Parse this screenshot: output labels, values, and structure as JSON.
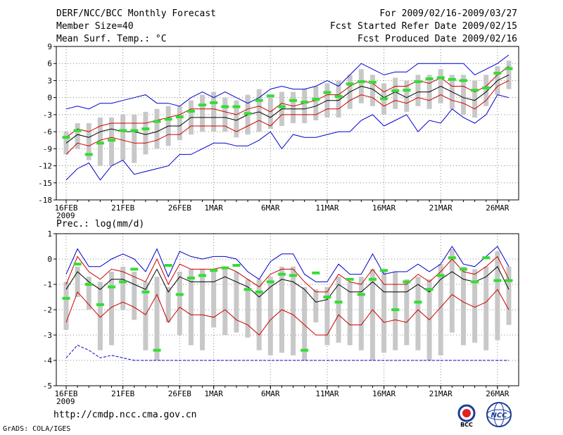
{
  "header": {
    "title": "DERF/NCC/BCC Monthly Forecast",
    "member_size": "Member Size=40",
    "variable": "Mean Surf. Temp.: °C",
    "for_period": "For 2009/02/16-2009/03/27",
    "fcst_started": "Fcst Started Refer Date 2009/02/15",
    "fcst_produced": "Fcst Produced Date 2009/02/16"
  },
  "footer": {
    "url": "http://cmdp.ncc.cma.gov.cn",
    "grads": "GrADS: COLA/IGES",
    "logo_bcc": "BCC",
    "logo_ncc": "NCC"
  },
  "colors": {
    "envelope": "#0000cc",
    "spread": "#cc0000",
    "mean": "#000000",
    "bar": "#c8c8c8",
    "observed": "#33dd33"
  },
  "chart_data": [
    {
      "type": "line",
      "title": "Mean Surf. Temp.: °C",
      "ylim": [
        -18,
        9
      ],
      "yticks": [
        -18,
        -15,
        -12,
        -9,
        -6,
        -3,
        0,
        3,
        6,
        9
      ],
      "xtick_labels": [
        "16FEB",
        "21FEB",
        "26FEB",
        "1MAR",
        "6MAR",
        "11MAR",
        "16MAR",
        "21MAR",
        "26MAR"
      ],
      "xtick_days": [
        0,
        5,
        10,
        13,
        18,
        23,
        28,
        33,
        38
      ],
      "year_label": "2009",
      "grid": true,
      "series": [
        {
          "name": "max",
          "values": [
            -2,
            -1.5,
            -2,
            -1,
            -1,
            -0.5,
            0,
            0.5,
            -1,
            -1,
            -1.5,
            0,
            1,
            0,
            1,
            0,
            -1,
            0,
            1.5,
            2,
            1.5,
            1.5,
            2,
            3,
            2,
            4,
            6,
            5,
            4,
            4.5,
            4.5,
            6,
            6,
            6,
            6,
            6,
            4,
            5,
            6,
            7.5
          ]
        },
        {
          "name": "upper",
          "values": [
            -7,
            -5.5,
            -6,
            -5,
            -4.5,
            -4.5,
            -4.5,
            -4.5,
            -4,
            -3.5,
            -3,
            -2,
            -2,
            -2,
            -2.5,
            -3,
            -2,
            -1.5,
            -2.5,
            -1,
            -1.5,
            -1,
            -0.5,
            0.5,
            0.5,
            2,
            3,
            2.5,
            1,
            2,
            2,
            3,
            2.5,
            3.5,
            2,
            2,
            1,
            2,
            4,
            5.5
          ]
        },
        {
          "name": "mean",
          "values": [
            -8,
            -6.5,
            -7,
            -6,
            -5.5,
            -6,
            -6,
            -6.5,
            -6,
            -5,
            -5,
            -3.5,
            -3.5,
            -3.5,
            -3.5,
            -4,
            -3,
            -2.5,
            -3.5,
            -2,
            -2,
            -2,
            -1.5,
            -0.5,
            -0.5,
            1,
            2,
            1.5,
            0,
            1,
            0,
            1,
            1,
            2,
            1,
            0,
            -0.5,
            1,
            3,
            4
          ]
        },
        {
          "name": "lower",
          "values": [
            -10,
            -8,
            -8.5,
            -7.5,
            -7,
            -7.5,
            -8,
            -8,
            -7.5,
            -6.5,
            -6.5,
            -5,
            -5,
            -5,
            -5,
            -6,
            -5,
            -4,
            -5,
            -3,
            -3,
            -3,
            -3,
            -2,
            -2,
            -0.5,
            0.5,
            0,
            -1.5,
            -0.5,
            -1,
            0,
            -0.5,
            0.5,
            -0.5,
            -1,
            -2,
            -0.5,
            2,
            3
          ]
        },
        {
          "name": "min",
          "values": [
            -14.5,
            -12.5,
            -11.5,
            -14.5,
            -12,
            -11,
            -13.5,
            -13,
            -12.5,
            -12,
            -10,
            -10,
            -9,
            -8,
            -8,
            -8.5,
            -8.5,
            -7.5,
            -6,
            -9,
            -6.5,
            -7,
            -7,
            -6.5,
            -6,
            -6,
            -4,
            -3,
            -5,
            -4,
            -3,
            -6,
            -4,
            -4.5,
            -2,
            -3.5,
            -4.5,
            -3,
            0.5,
            0
          ]
        },
        {
          "name": "obs",
          "values": [
            -7,
            -5.8,
            -10,
            -8,
            -7.5,
            -5.8,
            -5.8,
            -5.5,
            -4.2,
            -3.8,
            -3.4,
            -2.4,
            -1.3,
            -0.9,
            -1.6,
            -1.6,
            -2.8,
            -0.5,
            0.3,
            -1.6,
            -0.5,
            -0.8,
            -0.3,
            0.9,
            0.2,
            2.4,
            2.8,
            2.7,
            -0.2,
            1.2,
            1.3,
            2.8,
            3.3,
            3.5,
            3.2,
            3.0,
            1.3,
            1.7,
            4.3,
            5.1
          ]
        },
        {
          "name": "box_low",
          "values": [
            -10,
            -9,
            -11,
            -12,
            -12,
            -11,
            -11.5,
            -10,
            -9,
            -8.5,
            -7.5,
            -6.5,
            -6,
            -6,
            -6,
            -7,
            -6.5,
            -6,
            -5.5,
            -5,
            -4.5,
            -4.5,
            -4,
            -3.5,
            -3.5,
            -2,
            -1,
            -1.5,
            -3,
            -2,
            -2.5,
            -1.5,
            -2,
            -1,
            -2,
            -3,
            -3.5,
            -1.5,
            0.5,
            1.5
          ]
        },
        {
          "name": "box_high",
          "values": [
            -6,
            -4.5,
            -4.5,
            -3.5,
            -3.5,
            -3,
            -3,
            -2.5,
            -2,
            -1.5,
            -1.5,
            -0.5,
            0.5,
            1,
            0,
            -0.5,
            0.5,
            1.5,
            0,
            1,
            1,
            1.5,
            2,
            2.5,
            3,
            4,
            5,
            4,
            2.5,
            3.5,
            3,
            4,
            4,
            5,
            4,
            4,
            3,
            4,
            5.5,
            6.5
          ]
        }
      ]
    },
    {
      "type": "line",
      "title": "Prec.: log(mm/d)",
      "ylim": [
        -5,
        1
      ],
      "yticks": [
        -5,
        -4,
        -3,
        -2,
        -1,
        0,
        1
      ],
      "xtick_labels": [
        "16FEB",
        "21FEB",
        "26FEB",
        "1MAR",
        "6MAR",
        "11MAR",
        "16MAR",
        "21MAR",
        "26MAR"
      ],
      "xtick_days": [
        0,
        5,
        10,
        13,
        18,
        23,
        28,
        33,
        38
      ],
      "year_label": "2009",
      "grid": true,
      "series": [
        {
          "name": "max",
          "values": [
            -0.6,
            0.4,
            -0.3,
            -0.3,
            0,
            0.2,
            0,
            -0.5,
            0.4,
            -0.7,
            0.3,
            0.1,
            0,
            0.1,
            0.1,
            0,
            -0.5,
            -0.8,
            -0.1,
            0.2,
            0.2,
            -0.6,
            -0.9,
            -0.9,
            -0.2,
            -0.6,
            -0.6,
            0.2,
            -0.6,
            -0.5,
            -0.5,
            -0.2,
            -0.5,
            -0.2,
            0.5,
            -0.2,
            -0.3,
            0.1,
            0.5,
            -0.3
          ]
        },
        {
          "name": "upper",
          "values": [
            -1,
            0.1,
            -0.5,
            -0.8,
            -0.4,
            -0.5,
            -0.7,
            -0.9,
            0,
            -1,
            -0.2,
            -0.4,
            -0.4,
            -0.4,
            -0.3,
            -0.5,
            -0.8,
            -1.1,
            -0.6,
            -0.4,
            -0.4,
            -0.9,
            -1.3,
            -1.3,
            -0.6,
            -0.9,
            -1,
            -0.4,
            -1,
            -1,
            -1,
            -0.6,
            -0.9,
            -0.5,
            0,
            -0.5,
            -0.6,
            -0.3,
            0.1,
            -0.8
          ]
        },
        {
          "name": "mean",
          "values": [
            -1.2,
            -0.5,
            -0.9,
            -1.2,
            -0.8,
            -0.8,
            -1.0,
            -1.2,
            -0.4,
            -1.3,
            -0.7,
            -0.9,
            -0.9,
            -0.9,
            -0.7,
            -0.9,
            -1.1,
            -1.5,
            -1.1,
            -0.8,
            -0.9,
            -1.2,
            -1.7,
            -1.6,
            -1.0,
            -1.3,
            -1.3,
            -0.9,
            -1.3,
            -1.3,
            -1.3,
            -1.0,
            -1.3,
            -0.8,
            -0.5,
            -0.8,
            -0.9,
            -0.7,
            -0.3,
            -1.2
          ]
        },
        {
          "name": "lower",
          "values": [
            -2.5,
            -1.3,
            -1.8,
            -2.3,
            -1.9,
            -1.7,
            -1.9,
            -2.2,
            -1.4,
            -2.5,
            -1.9,
            -2.2,
            -2.2,
            -2.3,
            -2,
            -2.4,
            -2.6,
            -3,
            -2.4,
            -2,
            -2.2,
            -2.6,
            -3,
            -3,
            -2.2,
            -2.6,
            -2.6,
            -2,
            -2.5,
            -2.4,
            -2.5,
            -2,
            -2.4,
            -1.9,
            -1.4,
            -1.7,
            -1.9,
            -1.7,
            -1.2,
            -2
          ]
        },
        {
          "name": "min",
          "values": [
            -3.9,
            -3.4,
            -3.6,
            -3.9,
            -3.8,
            -3.9,
            -4,
            -4,
            -4,
            -4,
            -4,
            -4,
            -4,
            -4,
            -4,
            -4,
            -4,
            -4,
            -4,
            -4,
            -4,
            -4,
            -4,
            -4,
            -4,
            -4,
            -4,
            -4,
            -4,
            -4,
            -4,
            -4,
            -4,
            -4,
            -4,
            -4,
            -4,
            -4,
            -4,
            -4
          ]
        },
        {
          "name": "obs",
          "values": [
            -1.55,
            -0.2,
            -1.0,
            -1.8,
            -1.1,
            -0.9,
            -0.4,
            -1.3,
            -3.6,
            -0.25,
            -1.4,
            -0.75,
            -0.65,
            -0.45,
            -0.35,
            -0.25,
            -1.2,
            -1.3,
            -0.9,
            -0.6,
            -0.65,
            -3.6,
            -0.55,
            -1.5,
            -1.7,
            -0.8,
            -1.4,
            -0.8,
            -0.45,
            -2.0,
            -0.9,
            -1.7,
            -1.2,
            -0.65,
            0.05,
            -0.4,
            -0.9,
            0.05,
            -0.85,
            -0.85
          ]
        },
        {
          "name": "box_low",
          "values": [
            -2.8,
            -1.5,
            -2,
            -3.6,
            -3.4,
            -2,
            -2.4,
            -3.6,
            -4,
            -2.5,
            -3,
            -3.4,
            -3.6,
            -2.7,
            -3,
            -2.9,
            -3.1,
            -3.6,
            -3.8,
            -3.7,
            -3.8,
            -4,
            -2.5,
            -3.4,
            -3.3,
            -3.4,
            -3.6,
            -4,
            -3.7,
            -3.6,
            -3.4,
            -3.6,
            -4,
            -3.8,
            -2.9,
            -3.4,
            -3.3,
            -3.6,
            -3.2,
            -2.6
          ]
        },
        {
          "name": "box_high",
          "values": [
            -0.9,
            -0.3,
            -0.7,
            -0.9,
            -0.5,
            -0.3,
            -0.5,
            -0.9,
            -0.7,
            -1.1,
            -0.5,
            -0.4,
            -0.4,
            -0.4,
            -0.3,
            -0.5,
            -0.8,
            -0.8,
            -0.7,
            -0.3,
            -0.3,
            -1.1,
            -1.2,
            -1.1,
            -0.7,
            -0.9,
            -0.7,
            -0.4,
            -0.5,
            -0.5,
            -0.8,
            -0.7,
            -0.8,
            -0.2,
            0.4,
            -0.3,
            -0.4,
            -0.3,
            0.3,
            -0.3
          ]
        }
      ]
    }
  ]
}
